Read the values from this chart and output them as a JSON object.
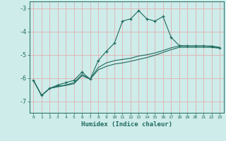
{
  "xlabel": "Humidex (Indice chaleur)",
  "ylabel": "",
  "xlim": [
    -0.5,
    23.5
  ],
  "ylim": [
    -7.5,
    -2.7
  ],
  "yticks": [
    -7,
    -6,
    -5,
    -4,
    -3
  ],
  "xticks": [
    0,
    1,
    2,
    3,
    4,
    5,
    6,
    7,
    8,
    9,
    10,
    11,
    12,
    13,
    14,
    15,
    16,
    17,
    18,
    19,
    20,
    21,
    22,
    23
  ],
  "bg_color": "#ceecea",
  "grid_color": "#ddb8b8",
  "line_color": "#1e6b5e",
  "lines": [
    {
      "x": [
        0,
        1,
        2,
        3,
        4,
        5,
        6,
        7,
        8,
        9,
        10,
        11,
        12,
        13,
        14,
        15,
        16,
        17,
        18,
        19,
        20,
        21,
        22,
        23
      ],
      "y": [
        -6.1,
        -6.75,
        -6.45,
        -6.3,
        -6.2,
        -6.1,
        -5.75,
        -6.05,
        -5.25,
        -4.85,
        -4.5,
        -3.55,
        -3.45,
        -3.1,
        -3.45,
        -3.55,
        -3.35,
        -4.25,
        -4.6,
        -4.62,
        -4.62,
        -4.62,
        -4.65,
        -4.7
      ],
      "marker": "+"
    },
    {
      "x": [
        0,
        1,
        2,
        3,
        4,
        5,
        6,
        7,
        8,
        9,
        10,
        11,
        12,
        13,
        14,
        15,
        16,
        17,
        18,
        19,
        20,
        21,
        22,
        23
      ],
      "y": [
        -6.1,
        -6.75,
        -6.45,
        -6.35,
        -6.3,
        -6.2,
        -5.85,
        -6.05,
        -5.55,
        -5.35,
        -5.25,
        -5.2,
        -5.15,
        -5.05,
        -5.0,
        -4.92,
        -4.82,
        -4.7,
        -4.62,
        -4.62,
        -4.62,
        -4.62,
        -4.62,
        -4.68
      ],
      "marker": null
    },
    {
      "x": [
        0,
        1,
        2,
        3,
        4,
        5,
        6,
        7,
        8,
        9,
        10,
        11,
        12,
        13,
        14,
        15,
        16,
        17,
        18,
        19,
        20,
        21,
        22,
        23
      ],
      "y": [
        -6.1,
        -6.75,
        -6.45,
        -6.38,
        -6.32,
        -6.25,
        -5.9,
        -6.05,
        -5.65,
        -5.5,
        -5.4,
        -5.35,
        -5.28,
        -5.2,
        -5.12,
        -5.02,
        -4.9,
        -4.78,
        -4.68,
        -4.68,
        -4.68,
        -4.68,
        -4.68,
        -4.72
      ],
      "marker": null
    }
  ]
}
